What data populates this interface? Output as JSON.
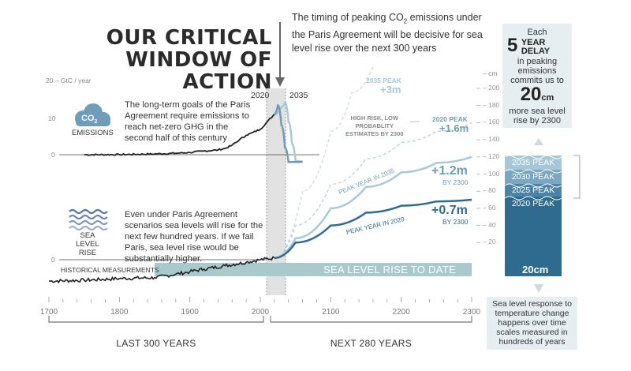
{
  "title": {
    "line1": "OUR CRITICAL",
    "line2": "WINDOW OF ACTION"
  },
  "intro_text": {
    "before": "The timing of peaking CO",
    "sub": "2",
    "after": " emissions under the Paris Agreement will be decisive for sea level rise over the next 300 years"
  },
  "emissions_panel": {
    "unit_label": "GtC / year",
    "icon_label": {
      "text": "CO",
      "sub": "2"
    },
    "caption": "EMISSIONS",
    "text": "The long-term goals of the Paris Agreement require emissions to reach net-zero GHG in the second half of this century",
    "year_labels": [
      "2020",
      "2035"
    ]
  },
  "sea_panel": {
    "caption_line1": "SEA LEVEL",
    "caption_line2": "RISE",
    "text": "Even under Paris Agreement scenarios sea levels will rise for the next few hundred years. If we fail Paris, sea level rise would be substantially higher.",
    "historical_label": "HISTORICAL MEASUREMENTS",
    "to_date_label": "SEA LEVEL RISE TO DATE",
    "to_date_value": "20cm"
  },
  "projections": {
    "p2035_peak_label": "2035 PEAK",
    "p2035_peak_value": "+3m",
    "high_risk": [
      "HIGH RISK, LOW",
      "PROBABLITY",
      "ESTIMATES BY 2300"
    ],
    "p2020_peak_label": "2020 PEAK",
    "p2020_peak_value": "+1.6m",
    "py2035_curve": "PEAK YEAR IN 2035",
    "py2035_value": "+1.2m",
    "py2035_by": "BY 2300",
    "py2020_curve": "PEAK YEAR IN 2020",
    "py2020_value": "+0.7m",
    "py2020_by": "BY 2300"
  },
  "right_axis": {
    "unit": "cm",
    "ticks": [
      200,
      180,
      160,
      140,
      120,
      100,
      80,
      60,
      40,
      20
    ]
  },
  "stack": {
    "labels": [
      "2035 PEAK",
      "2030 PEAK",
      "2025 PEAK",
      "2020 PEAK"
    ]
  },
  "sidebar": {
    "line1": "Each",
    "big": "5",
    "line2a": "YEAR",
    "line2b": "DELAY",
    "line3": [
      "in peaking",
      "emissions",
      "commits us to"
    ],
    "big2": "20",
    "big2_unit": "cm",
    "line4": [
      "more sea level",
      "rise by 2300"
    ]
  },
  "bottom_note": [
    "Sea level response to",
    "temperature change",
    "happens over time",
    "scales measured in",
    "hundreds of years"
  ],
  "periods": {
    "past": "LAST 300 YEARS",
    "future": "NEXT 280 YEARS"
  },
  "colors": {
    "dark": "#222222",
    "teal": "#2f6b8f",
    "light_blue": "#a9c8d8",
    "mid_blue": "#6f9cb8",
    "pale": "#dde9ef",
    "to_date_bar": "#a9c9cc"
  },
  "chart_data": {
    "type": "line",
    "x_ticks": [
      1700,
      1800,
      1900,
      2000,
      2100,
      2200,
      2300
    ],
    "xlim": [
      1700,
      2300
    ],
    "emissions": {
      "ylabel": "GtC / year",
      "ylim": [
        0,
        20
      ],
      "y_ticks": [
        0,
        10,
        20
      ],
      "historical": {
        "x": [
          1750,
          1800,
          1850,
          1880,
          1900,
          1920,
          1940,
          1950,
          1960,
          1970,
          1980,
          1990,
          2000,
          2010,
          2020
        ],
        "y": [
          0,
          0.03,
          0.2,
          0.4,
          0.6,
          1.0,
          1.3,
          1.7,
          2.6,
          4.0,
          5.3,
          6.1,
          6.9,
          9.0,
          11.0
        ]
      },
      "peak_2020": {
        "x": [
          2020,
          2025,
          2030,
          2035,
          2040,
          2050,
          2060
        ],
        "y": [
          11,
          13.5,
          8,
          2,
          -2,
          -2,
          -2
        ]
      },
      "peak_2035": {
        "x": [
          2020,
          2030,
          2035,
          2040,
          2045,
          2050,
          2060
        ],
        "y": [
          11,
          13,
          14.3,
          9,
          3,
          -1.7,
          -1.8
        ]
      }
    },
    "sea_level": {
      "unit": "cm",
      "historical": {
        "x": [
          1700,
          1750,
          1800,
          1850,
          1880,
          1900,
          1920,
          1950,
          1980,
          2000,
          2020
        ],
        "y": [
          -25,
          -24,
          -22,
          -21,
          -17,
          -14,
          -11,
          -7,
          -3,
          0,
          2
        ]
      },
      "peak_year_2020": {
        "x": [
          2020,
          2050,
          2100,
          2150,
          2200,
          2250,
          2300
        ],
        "y": [
          2,
          20,
          40,
          55,
          63,
          68,
          70
        ]
      },
      "peak_year_2035": {
        "x": [
          2020,
          2050,
          2100,
          2150,
          2200,
          2250,
          2300
        ],
        "y": [
          2,
          25,
          60,
          85,
          102,
          113,
          120
        ]
      },
      "peak_2020_high_risk": {
        "x": [
          2020,
          2050,
          2100,
          2150,
          2200,
          2250,
          2300
        ],
        "y": [
          2,
          40,
          88,
          118,
          137,
          150,
          160
        ]
      },
      "peak_2035_high_risk": {
        "x": [
          2020,
          2060,
          2100,
          2130,
          2160
        ],
        "y": [
          2,
          80,
          150,
          195,
          225
        ]
      }
    }
  }
}
